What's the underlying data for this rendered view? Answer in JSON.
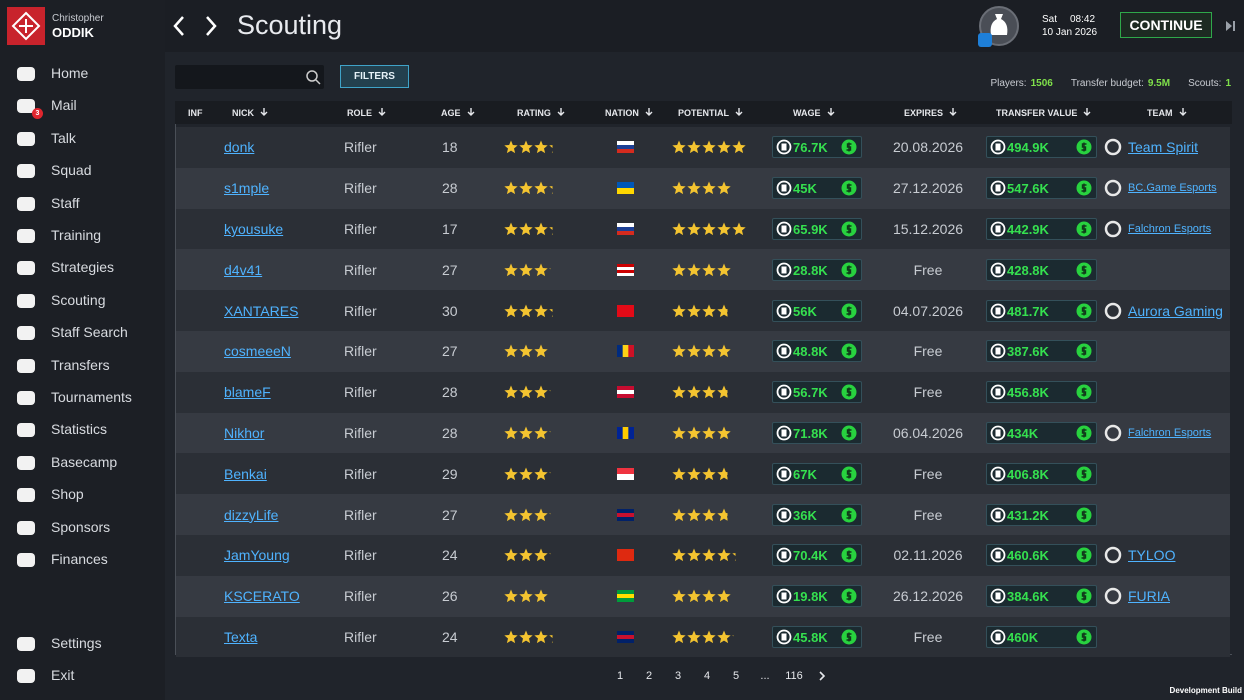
{
  "header": {
    "first_name": "Christopher",
    "last_name": "ODDIK",
    "title": "Scouting",
    "day": "Sat",
    "time": "08:42",
    "date": "10 Jan 2026",
    "continue": "CONTINUE"
  },
  "nav": [
    "Home",
    "Mail",
    "Talk",
    "Squad",
    "Staff",
    "Training",
    "Strategies",
    "Scouting",
    "Staff Search",
    "Transfers",
    "Tournaments",
    "Statistics",
    "Basecamp",
    "Shop",
    "Sponsors",
    "Finances"
  ],
  "mail_badge": "3",
  "nav_bottom": [
    "Settings",
    "Exit"
  ],
  "toolbar": {
    "filters": "FILTERS",
    "players_label": "Players:",
    "players": "1506",
    "budget_label": "Transfer budget:",
    "budget": "9.5M",
    "scouts_label": "Scouts:",
    "scouts": "1"
  },
  "table": {
    "columns": [
      "INF",
      "NICK",
      "ROLE",
      "AGE",
      "RATING",
      "NATION",
      "POTENTIAL",
      "WAGE",
      "EXPIRES",
      "TRANSFER VALUE",
      "TEAM"
    ],
    "rows": [
      {
        "nick": "donk",
        "role": "Rifler",
        "age": 18,
        "rating": 3.25,
        "flag": [
          "#ffffff",
          "#1c3f94",
          "#d52b1e"
        ],
        "flag_stripes": "horizontal",
        "potential": 5,
        "wage": "76.7K",
        "expires": "20.08.2026",
        "transfer_value": "494.9K",
        "team": "Team Spirit"
      },
      {
        "nick": "s1mple",
        "role": "Rifler",
        "age": 28,
        "rating": 3.25,
        "flag": [
          "#0057b7",
          "#ffd700"
        ],
        "flag_stripes": "horizontal",
        "potential": 4,
        "wage": "45K",
        "expires": "27.12.2026",
        "transfer_value": "547.6K",
        "team": "BC.Game Esports"
      },
      {
        "nick": "kyousuke",
        "role": "Rifler",
        "age": 17,
        "rating": 3.25,
        "flag": [
          "#ffffff",
          "#1c3f94",
          "#d52b1e"
        ],
        "flag_stripes": "horizontal",
        "potential": 5,
        "wage": "65.9K",
        "expires": "15.12.2026",
        "transfer_value": "442.9K",
        "team": "Falchron Esports"
      },
      {
        "nick": "d4v41",
        "role": "Rifler",
        "age": 27,
        "rating": 3.1,
        "flag": [
          "#cc0001",
          "#ffffff",
          "#cc0001",
          "#ffffff"
        ],
        "flag_stripes": "horizontal",
        "potential": 4,
        "wage": "28.8K",
        "expires": "Free",
        "transfer_value": "428.8K",
        "team": null
      },
      {
        "nick": "XANTARES",
        "role": "Rifler",
        "age": 30,
        "rating": 3.25,
        "flag": [
          "#e30a17"
        ],
        "flag_stripes": "horizontal",
        "potential": 3.75,
        "wage": "56K",
        "expires": "04.07.2026",
        "transfer_value": "481.7K",
        "team": "Aurora Gaming"
      },
      {
        "nick": "cosmeeeN",
        "role": "Rifler",
        "age": 27,
        "rating": 3,
        "flag": [
          "#002b7f",
          "#fcd116",
          "#ce1126"
        ],
        "flag_stripes": "vertical",
        "potential": 4,
        "wage": "48.8K",
        "expires": "Free",
        "transfer_value": "387.6K",
        "team": null
      },
      {
        "nick": "blameF",
        "role": "Rifler",
        "age": 28,
        "rating": 3.1,
        "flag": [
          "#c60c30",
          "#ffffff",
          "#c60c30"
        ],
        "flag_stripes": "horizontal",
        "potential": 3.75,
        "wage": "56.7K",
        "expires": "Free",
        "transfer_value": "456.8K",
        "team": null
      },
      {
        "nick": "Nikhor",
        "role": "Rifler",
        "age": 28,
        "rating": 3.1,
        "flag": [
          "#002395",
          "#fecb00",
          "#002395"
        ],
        "flag_stripes": "vertical",
        "potential": 4,
        "wage": "71.8K",
        "expires": "06.04.2026",
        "transfer_value": "434K",
        "team": "Falchron Esports"
      },
      {
        "nick": "Benkai",
        "role": "Rifler",
        "age": 29,
        "rating": 3.1,
        "flag": [
          "#ef3340",
          "#ffffff"
        ],
        "flag_stripes": "horizontal",
        "potential": 3.75,
        "wage": "67K",
        "expires": "Free",
        "transfer_value": "406.8K",
        "team": null
      },
      {
        "nick": "dizzyLife",
        "role": "Rifler",
        "age": 27,
        "rating": 3.1,
        "flag": [
          "#012169",
          "#c8102e",
          "#012169"
        ],
        "flag_stripes": "horizontal",
        "potential": 3.75,
        "wage": "36K",
        "expires": "Free",
        "transfer_value": "431.2K",
        "team": null
      },
      {
        "nick": "JamYoung",
        "role": "Rifler",
        "age": 24,
        "rating": 3.1,
        "flag": [
          "#de2910"
        ],
        "flag_stripes": "horizontal",
        "potential": 4.25,
        "wage": "70.4K",
        "expires": "02.11.2026",
        "transfer_value": "460.6K",
        "team": "TYLOO"
      },
      {
        "nick": "KSCERATO",
        "role": "Rifler",
        "age": 26,
        "rating": 3,
        "flag": [
          "#009c3b",
          "#ffdf00",
          "#009c3b"
        ],
        "flag_stripes": "horizontal",
        "potential": 4,
        "wage": "19.8K",
        "expires": "26.12.2026",
        "transfer_value": "384.6K",
        "team": "FURIA"
      },
      {
        "nick": "Texta",
        "role": "Rifler",
        "age": 24,
        "rating": 3.25,
        "flag": [
          "#012169",
          "#c8102e",
          "#012169"
        ],
        "flag_stripes": "horizontal",
        "potential": 4.1,
        "wage": "45.8K",
        "expires": "Free",
        "transfer_value": "460K",
        "team": null
      }
    ]
  },
  "pagination": [
    "1",
    "2",
    "3",
    "4",
    "5",
    "...",
    "116"
  ],
  "footer": "Development Build"
}
